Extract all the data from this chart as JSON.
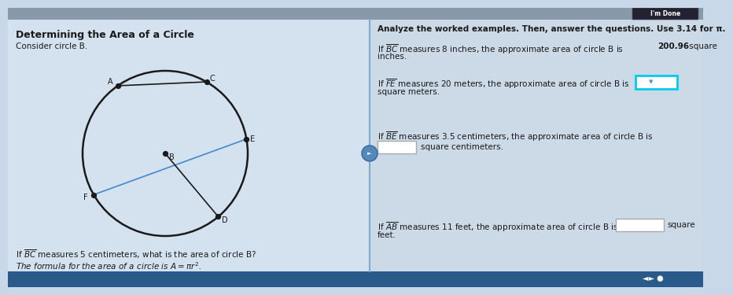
{
  "bg_color": "#c8d8e8",
  "left_bg": "#d4e2ef",
  "right_bg": "#ccd9e6",
  "divider_color": "#7aaccc",
  "title": "Determining the Area of a Circle",
  "subtitle": "Consider circle B.",
  "right_header": "Analyze the worked examples. Then, answer the questions. Use 3.14 for π.",
  "im_done_text": "I'm Done",
  "bottom_bar_color": "#2a5a8a",
  "circle_color": "#1a1a1a",
  "line_color_dark": "#1a1a1a",
  "line_color_blue": "#4488cc",
  "point_color": "#1a1a1a",
  "text_color": "#1a1a1a"
}
